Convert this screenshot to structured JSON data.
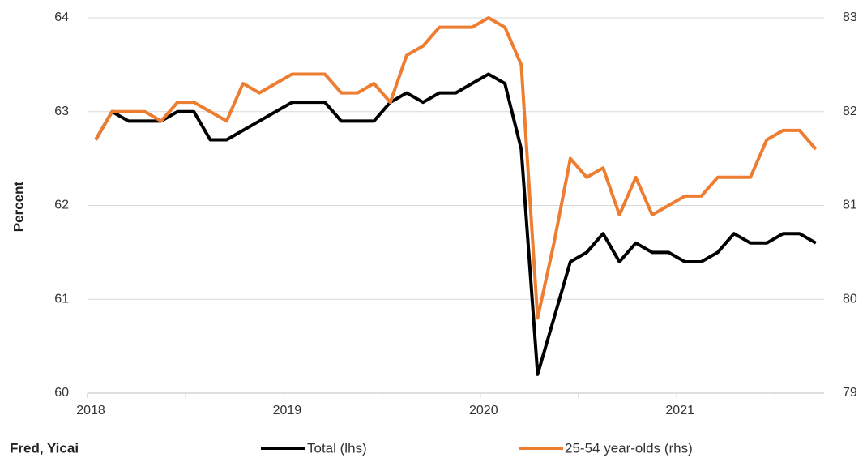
{
  "chart_data": {
    "type": "line",
    "y_label": "Percent",
    "source": "Fred, Yicai",
    "categories": [
      "2018",
      null,
      null,
      null,
      null,
      null,
      null,
      null,
      null,
      null,
      null,
      null,
      "2019",
      null,
      null,
      null,
      null,
      null,
      null,
      null,
      null,
      null,
      null,
      null,
      "2020",
      null,
      null,
      null,
      null,
      null,
      null,
      null,
      null,
      null,
      null,
      null,
      "2021",
      null,
      null,
      null,
      null,
      null,
      null,
      null,
      null
    ],
    "ylim": [
      60,
      64
    ],
    "yticks": [
      60,
      61,
      62,
      63,
      64
    ],
    "y2lim": [
      79,
      83
    ],
    "y2ticks": [
      79,
      80,
      81,
      82,
      83
    ],
    "grid": true,
    "series": [
      {
        "name": "Total (lhs)",
        "color": "#000000",
        "values": [
          62.7,
          63.0,
          62.9,
          62.9,
          62.9,
          63.0,
          63.0,
          62.7,
          62.7,
          62.8,
          62.9,
          63.0,
          63.1,
          63.1,
          63.1,
          62.9,
          62.9,
          62.9,
          63.1,
          63.2,
          63.1,
          63.2,
          63.2,
          63.3,
          63.4,
          63.3,
          62.6,
          60.2,
          60.8,
          61.4,
          61.5,
          61.7,
          61.4,
          61.6,
          61.5,
          61.5,
          61.4,
          61.4,
          61.5,
          61.7,
          61.6,
          61.6,
          61.7,
          61.7,
          61.6
        ]
      },
      {
        "name": "25-54 year-olds (rhs)",
        "color": "#ed7d31",
        "axis": "y2",
        "values": [
          81.7,
          82.0,
          82.0,
          82.0,
          81.9,
          82.1,
          82.1,
          82.0,
          81.9,
          82.3,
          82.2,
          82.3,
          82.4,
          82.4,
          82.4,
          82.2,
          82.2,
          82.3,
          82.1,
          82.6,
          82.7,
          82.9,
          82.9,
          82.9,
          83.0,
          82.9,
          82.5,
          79.8,
          80.6,
          81.5,
          81.3,
          81.4,
          80.9,
          81.3,
          80.9,
          81.0,
          81.1,
          81.1,
          81.3,
          81.3,
          81.3,
          81.7,
          81.8,
          81.8,
          81.6
        ]
      }
    ]
  }
}
